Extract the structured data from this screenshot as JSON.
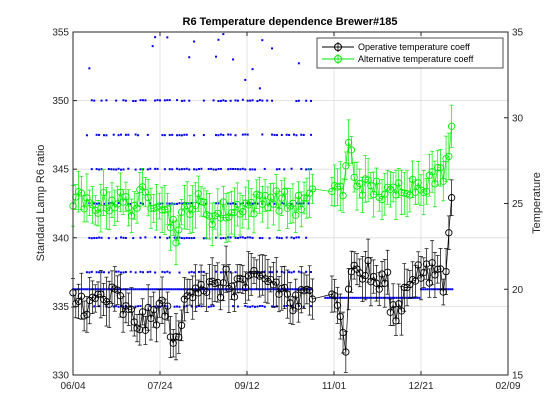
{
  "chart_data": {
    "type": "scatter",
    "title": "R6 Temperature dependence Brewer#185",
    "ylabel_left": "Standard Lamp R6 ratio",
    "ylabel_right": "Temperature",
    "x_tick_labels": [
      "06/04",
      "07/24",
      "09/12",
      "11/01",
      "12/21",
      "02/09"
    ],
    "xlim_days": [
      0,
      250
    ],
    "ylim_left": [
      330,
      355
    ],
    "ylim_right": [
      15,
      35
    ],
    "left_ticks": [
      330,
      335,
      340,
      345,
      350,
      355
    ],
    "right_ticks": [
      15,
      20,
      25,
      30,
      35
    ],
    "grid": true,
    "legend_position": "top-right",
    "colors": {
      "operative": "#000000",
      "alternative": "#00ee00",
      "temperature": "#0000ee",
      "right_axis": "#0000ee"
    },
    "series": [
      {
        "name": "Operative temperature coeff",
        "marker": "circle-errorbar",
        "anchors": [
          [
            0,
            335.5
          ],
          [
            6,
            335.3
          ],
          [
            10,
            335.0
          ],
          [
            15,
            335.6
          ],
          [
            20,
            335.4
          ],
          [
            25,
            335.8
          ],
          [
            30,
            334.5
          ],
          [
            35,
            334.0
          ],
          [
            40,
            333.8
          ],
          [
            45,
            334.0
          ],
          [
            50,
            335.0
          ],
          [
            55,
            334.2
          ],
          [
            58,
            332.5
          ],
          [
            60,
            331.5
          ],
          [
            63,
            334.5
          ],
          [
            67,
            336.5
          ],
          [
            72,
            336.8
          ],
          [
            77,
            336.5
          ],
          [
            82,
            336.0
          ],
          [
            87,
            336.8
          ],
          [
            92,
            336.5
          ],
          [
            97,
            336.8
          ],
          [
            102,
            336.5
          ],
          [
            107,
            336.8
          ],
          [
            112,
            337.0
          ],
          [
            117,
            336.5
          ],
          [
            122,
            336.0
          ],
          [
            127,
            335.0
          ],
          [
            132,
            335.5
          ],
          [
            137,
            335.8
          ],
          [
            150,
            337.0
          ],
          [
            155,
            333.8
          ],
          [
            157,
            331.0
          ],
          [
            159,
            339.0
          ],
          [
            161,
            337.5
          ],
          [
            165,
            337.5
          ],
          [
            170,
            337.5
          ],
          [
            175,
            336.5
          ],
          [
            180,
            337.0
          ],
          [
            185,
            334.0
          ],
          [
            190,
            336.0
          ],
          [
            195,
            337.5
          ],
          [
            200,
            337.5
          ],
          [
            205,
            337.0
          ],
          [
            210,
            338.0
          ],
          [
            214,
            336.0
          ],
          [
            216,
            340.5
          ],
          [
            218,
            344.5
          ]
        ],
        "noise": 1.0
      },
      {
        "name": "Alternative temperature coeff",
        "marker": "circle-errorbar",
        "anchors": [
          [
            0,
            343.0
          ],
          [
            6,
            342.5
          ],
          [
            10,
            342.0
          ],
          [
            15,
            342.5
          ],
          [
            20,
            342.6
          ],
          [
            25,
            342.8
          ],
          [
            30,
            342.5
          ],
          [
            35,
            342.3
          ],
          [
            40,
            343.0
          ],
          [
            45,
            342.8
          ],
          [
            50,
            343.0
          ],
          [
            55,
            341.5
          ],
          [
            58,
            341.0
          ],
          [
            60,
            340.0
          ],
          [
            63,
            341.5
          ],
          [
            67,
            342.5
          ],
          [
            72,
            342.5
          ],
          [
            77,
            342.0
          ],
          [
            82,
            341.5
          ],
          [
            87,
            342.0
          ],
          [
            92,
            341.8
          ],
          [
            97,
            342.5
          ],
          [
            102,
            342.3
          ],
          [
            107,
            342.6
          ],
          [
            112,
            343.0
          ],
          [
            117,
            342.8
          ],
          [
            122,
            342.6
          ],
          [
            127,
            342.3
          ],
          [
            132,
            342.5
          ],
          [
            137,
            342.8
          ],
          [
            150,
            344.0
          ],
          [
            155,
            343.2
          ],
          [
            157,
            345.0
          ],
          [
            159,
            347.5
          ],
          [
            161,
            344.5
          ],
          [
            165,
            344.0
          ],
          [
            170,
            343.5
          ],
          [
            175,
            343.6
          ],
          [
            180,
            343.0
          ],
          [
            185,
            343.2
          ],
          [
            190,
            344.0
          ],
          [
            195,
            343.8
          ],
          [
            200,
            344.0
          ],
          [
            205,
            344.2
          ],
          [
            210,
            344.5
          ],
          [
            214,
            345.0
          ],
          [
            216,
            346.5
          ],
          [
            218,
            349.5
          ]
        ],
        "noise": 0.8
      },
      {
        "name": "Temperature",
        "axis": "right",
        "marker": "dot",
        "levels": [
          19,
          21,
          23,
          25,
          27,
          29,
          31
        ],
        "x_range": [
          8,
          137
        ],
        "flat_segments": [
          [
            0,
            137,
            20
          ],
          [
            145,
            200,
            19.5
          ],
          [
            200,
            218,
            20.0
          ]
        ]
      }
    ]
  }
}
